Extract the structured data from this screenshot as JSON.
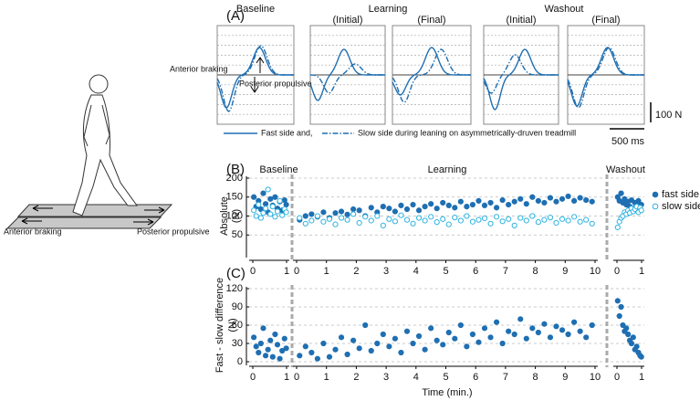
{
  "panel_a": {
    "label": "(A)",
    "conditions": [
      {
        "title": "Baseline"
      },
      {
        "title": "Learning",
        "subtitles": [
          "(Initial)",
          "(Final)"
        ]
      },
      {
        "title": "Washout",
        "subtitles": [
          "(Initial)",
          "(Final)"
        ]
      }
    ],
    "annotations": [
      "Anterior braking",
      "Posterior propulsive"
    ],
    "scale_y": "100 N",
    "scale_x": "500 ms",
    "legend": [
      "Fast side and,",
      "Slow side during leaning on asymmetrically-druven treadmill"
    ]
  },
  "figure": {
    "labels": [
      "Anterior braking",
      "Posterior propulsive"
    ]
  },
  "chart_data": [
    {
      "type": "scatter",
      "label": "(B)",
      "ylabel": "Absolute",
      "yunit": "(N)",
      "ylim": [
        0,
        200
      ],
      "yticks": [
        50,
        100,
        150,
        200
      ],
      "grid": true,
      "legend": "right",
      "series": [
        {
          "name": "fast side",
          "color": "#1f6fb2",
          "filled": true
        },
        {
          "name": "slow side",
          "color": "#2fb3e0",
          "filled": false
        }
      ],
      "panels": [
        {
          "title": "Baseline",
          "xlim": [
            0,
            1
          ],
          "xticks": [
            0,
            1
          ],
          "x": [
            0.03,
            0.1,
            0.17,
            0.24,
            0.31,
            0.38,
            0.45,
            0.52,
            0.59,
            0.66,
            0.73,
            0.8,
            0.87,
            0.94,
            0.99
          ],
          "data": [
            {
              "values": [
                150,
                125,
                140,
                118,
                160,
                132,
                110,
                145,
                128,
                150,
                120,
                138,
                115,
                142,
                130
              ]
            },
            {
              "values": [
                115,
                100,
                130,
                95,
                108,
                120,
                170,
                105,
                125,
                98,
                112,
                140,
                102,
                118,
                110
              ]
            }
          ]
        },
        {
          "title": "Learning",
          "xlim": [
            0,
            10
          ],
          "xticks": [
            0,
            1,
            2,
            3,
            4,
            5,
            6,
            7,
            8,
            9,
            10
          ],
          "x": [
            0.1,
            0.3,
            0.5,
            0.7,
            0.9,
            1.1,
            1.3,
            1.5,
            1.7,
            1.9,
            2.1,
            2.3,
            2.5,
            2.7,
            2.9,
            3.1,
            3.3,
            3.5,
            3.7,
            3.9,
            4.1,
            4.3,
            4.5,
            4.7,
            4.9,
            5.1,
            5.3,
            5.5,
            5.7,
            5.9,
            6.1,
            6.3,
            6.5,
            6.7,
            6.9,
            7.1,
            7.3,
            7.5,
            7.7,
            7.9,
            8.1,
            8.3,
            8.5,
            8.7,
            8.9,
            9.1,
            9.3,
            9.5,
            9.7,
            9.9
          ],
          "data": [
            {
              "values": [
                90,
                100,
                105,
                98,
                110,
                95,
                108,
                112,
                104,
                118,
                115,
                100,
                122,
                110,
                125,
                120,
                112,
                128,
                118,
                130,
                115,
                125,
                132,
                120,
                135,
                128,
                122,
                138,
                125,
                130,
                140,
                128,
                135,
                122,
                142,
                130,
                138,
                145,
                132,
                150,
                140,
                135,
                148,
                138,
                145,
                152,
                140,
                148,
                142,
                138
              ]
            },
            {
              "values": [
                95,
                80,
                88,
                100,
                85,
                92,
                78,
                95,
                90,
                105,
                82,
                98,
                88,
                100,
                75,
                92,
                86,
                102,
                90,
                80,
                95,
                88,
                98,
                84,
                92,
                78,
                96,
                88,
                100,
                85,
                90,
                94,
                80,
                98,
                86,
                92,
                75,
                95,
                88,
                100,
                84,
                90,
                96,
                82,
                92,
                88,
                98,
                85,
                90,
                80
              ]
            }
          ]
        },
        {
          "title": "Washout",
          "xlim": [
            0,
            1
          ],
          "xticks": [
            0,
            1
          ],
          "x": [
            0.03,
            0.1,
            0.17,
            0.24,
            0.31,
            0.38,
            0.45,
            0.52,
            0.59,
            0.66,
            0.73,
            0.8,
            0.87,
            0.94,
            0.99
          ],
          "data": [
            {
              "values": [
                150,
                140,
                160,
                135,
                145,
                130,
                138,
                125,
                142,
                120,
                135,
                128,
                140,
                118,
                130
              ]
            },
            {
              "values": [
                70,
                85,
                95,
                100,
                110,
                105,
                115,
                108,
                120,
                112,
                118,
                125,
                110,
                122,
                115
              ]
            }
          ]
        }
      ]
    },
    {
      "type": "scatter",
      "label": "(C)",
      "ylabel": "Fast - slow difference",
      "yunit": "(N)",
      "xlabel": "Time (min.)",
      "ylim": [
        0,
        120
      ],
      "yticks": [
        0,
        30,
        60,
        90,
        120
      ],
      "grid": true,
      "series": [
        {
          "color": "#1f6fb2",
          "filled": true
        }
      ],
      "panels": [
        {
          "xlim": [
            0,
            1
          ],
          "xticks": [
            0,
            1
          ],
          "x": [
            0.03,
            0.1,
            0.17,
            0.24,
            0.31,
            0.38,
            0.45,
            0.52,
            0.59,
            0.66,
            0.73,
            0.8,
            0.87,
            0.94,
            0.99
          ],
          "data": [
            {
              "values": [
                40,
                25,
                15,
                30,
                55,
                10,
                20,
                35,
                8,
                45,
                28,
                5,
                18,
                38,
                22
              ]
            }
          ]
        },
        {
          "xlim": [
            0,
            10
          ],
          "xticks": [
            0,
            1,
            2,
            3,
            4,
            5,
            6,
            7,
            8,
            9,
            10
          ],
          "x": [
            0.1,
            0.3,
            0.5,
            0.7,
            0.9,
            1.1,
            1.3,
            1.5,
            1.7,
            1.9,
            2.1,
            2.3,
            2.5,
            2.7,
            2.9,
            3.1,
            3.3,
            3.5,
            3.7,
            3.9,
            4.1,
            4.3,
            4.5,
            4.7,
            4.9,
            5.1,
            5.3,
            5.5,
            5.7,
            5.9,
            6.1,
            6.3,
            6.5,
            6.7,
            6.9,
            7.1,
            7.3,
            7.5,
            7.7,
            7.9,
            8.1,
            8.3,
            8.5,
            8.7,
            8.9,
            9.1,
            9.3,
            9.5,
            9.7,
            9.9
          ],
          "data": [
            {
              "values": [
                10,
                25,
                15,
                5,
                30,
                8,
                20,
                40,
                12,
                35,
                22,
                60,
                18,
                30,
                45,
                25,
                38,
                15,
                50,
                30,
                42,
                20,
                55,
                35,
                28,
                48,
                38,
                60,
                25,
                45,
                32,
                55,
                40,
                65,
                30,
                50,
                45,
                70,
                38,
                55,
                48,
                62,
                40,
                58,
                52,
                45,
                65,
                50,
                40,
                60
              ]
            }
          ]
        },
        {
          "xlim": [
            0,
            1
          ],
          "xticks": [
            0,
            1
          ],
          "x": [
            0.03,
            0.1,
            0.17,
            0.24,
            0.31,
            0.38,
            0.45,
            0.52,
            0.59,
            0.66,
            0.73,
            0.8,
            0.87,
            0.94,
            0.99
          ],
          "data": [
            {
              "values": [
                100,
                75,
                90,
                60,
                50,
                55,
                45,
                35,
                30,
                40,
                20,
                25,
                15,
                10,
                8
              ]
            }
          ]
        }
      ]
    }
  ]
}
